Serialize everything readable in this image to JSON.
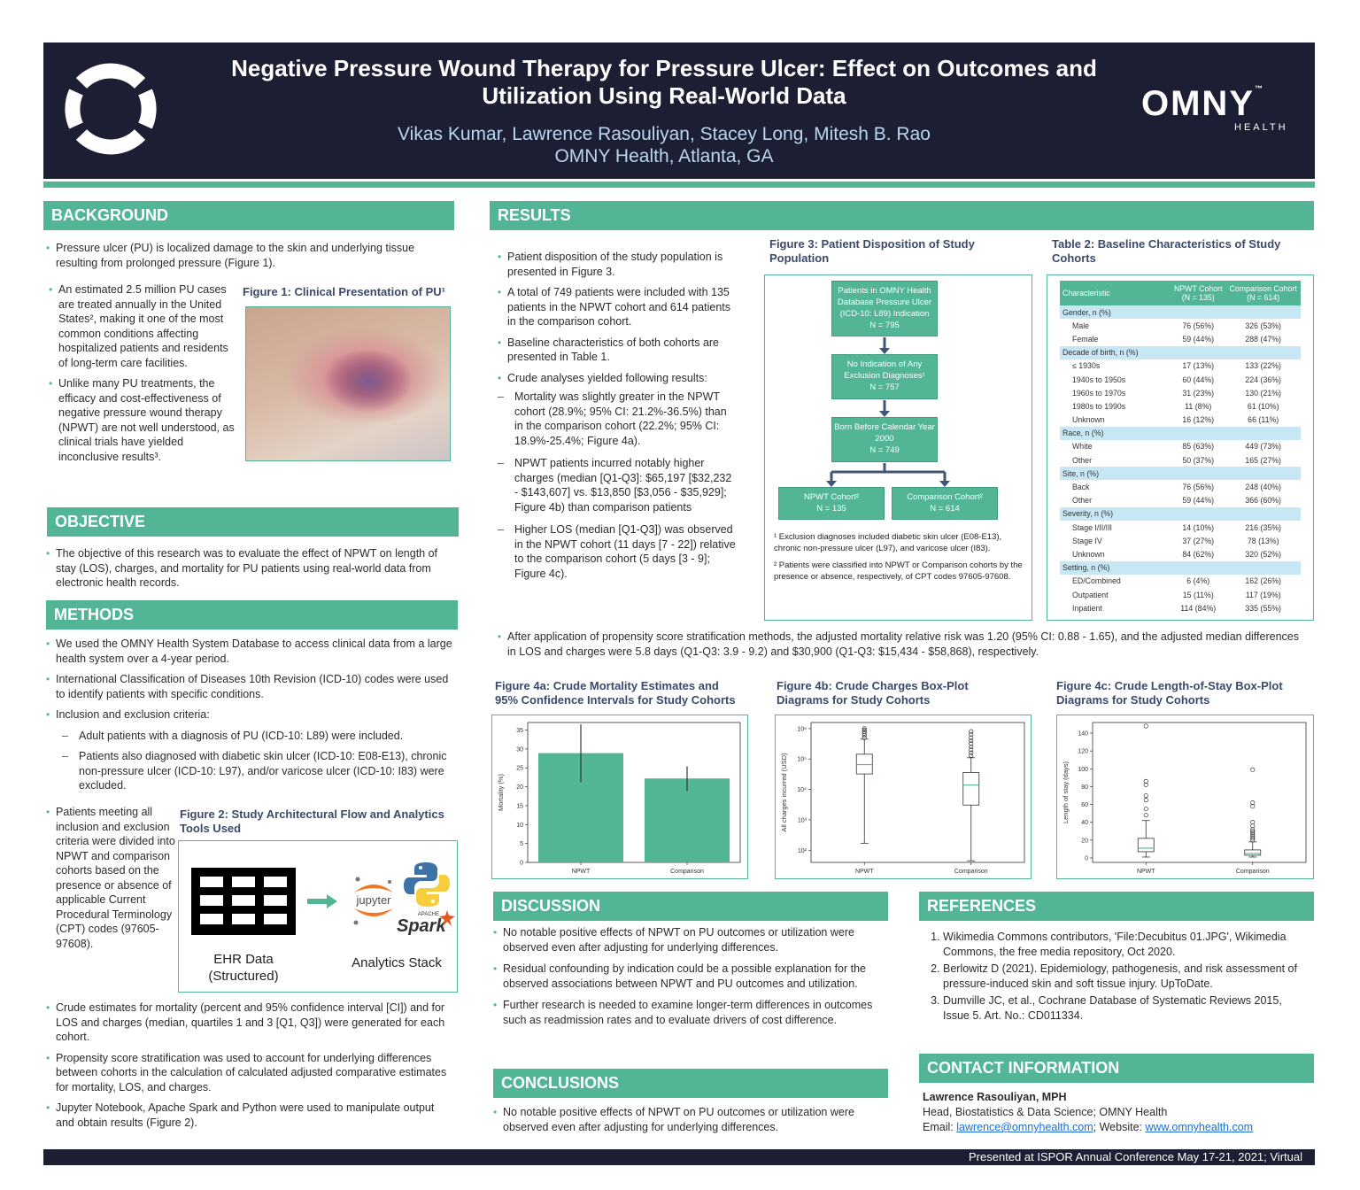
{
  "header": {
    "title": "Negative Pressure Wound Therapy for Pressure Ulcer: Effect on Outcomes and Utilization Using Real-World Data",
    "authors": "Vikas Kumar, Lawrence Rasouliyan, Stacey Long, Mitesh B. Rao",
    "affiliation": "OMNY Health, Atlanta, GA",
    "logo_text": "OMNY",
    "logo_sub": "HEALTH",
    "tm": "™"
  },
  "background": {
    "heading": "BACKGROUND",
    "items": [
      "Pressure ulcer (PU) is localized damage to the skin and underlying tissue resulting from prolonged pressure (Figure 1).",
      "An estimated 2.5 million PU cases are treated annually in the United States², making it one of the most common conditions affecting hospitalized patients and residents of long-term care facilities.",
      "Unlike many PU treatments, the efficacy and cost-effectiveness of negative pressure wound therapy (NPWT) are not well understood, as clinical trials have yielded inconclusive results³."
    ],
    "fig1_caption": "Figure 1: Clinical Presentation of PU¹"
  },
  "objective": {
    "heading": "OBJECTIVE",
    "items": [
      "The objective of this research was to evaluate the effect of NPWT on length of stay (LOS), charges, and mortality for PU patients using real-world data from electronic health records."
    ]
  },
  "methods": {
    "heading": "METHODS",
    "items": [
      "We used the OMNY Health System Database to access clinical data from a large health system over a 4-year period.",
      "International Classification of Diseases 10th Revision (ICD-10) codes were used to identify patients with specific conditions.",
      "Inclusion and exclusion criteria:"
    ],
    "sub": [
      "Adult patients with a diagnosis of PU (ICD-10: L89) were included.",
      "Patients also diagnosed with diabetic skin ulcer (ICD-10: E08-E13), chronic non-pressure ulcer (ICD-10: L97), and/or varicose ulcer (ICD-10: I83) were excluded."
    ],
    "cohort_item": "Patients meeting all inclusion and exclusion criteria were divided into NPWT and comparison cohorts based on the presence or absence of applicable Current Procedural Terminology (CPT) codes (97605-97608).",
    "fig2_caption": "Figure 2: Study Architectural Flow and Analytics Tools Used",
    "fig2_left": "EHR Data (Structured)",
    "fig2_right": "Analytics Stack",
    "jupyter": "jupyter",
    "spark_apache": "APACHE",
    "spark": "Spark",
    "items2": [
      "Crude estimates for mortality (percent and 95% confidence interval [CI]) and for LOS and charges (median, quartiles 1 and 3 [Q1, Q3]) were generated for each cohort.",
      "Propensity score stratification was used to account for underlying differences between cohorts in the calculation of calculated adjusted comparative estimates for mortality, LOS, and charges.",
      "Jupyter Notebook, Apache Spark and Python were used to manipulate output and obtain results (Figure 2)."
    ]
  },
  "results": {
    "heading": "RESULTS",
    "items": [
      "Patient disposition of the study population is presented in Figure 3.",
      "A total of 749 patients were included with 135 patients in the NPWT cohort and 614 patients in the comparison cohort.",
      "Baseline characteristics of both cohorts are presented in Table 1.",
      "Crude analyses yielded following results:"
    ],
    "sub": [
      "Mortality was slightly greater in the NPWT cohort (28.9%; 95% CI: 21.2%-36.5%) than in the comparison cohort (22.2%; 95% CI: 18.9%-25.4%; Figure 4a).",
      "NPWT patients incurred notably higher charges (median [Q1-Q3]: $65,197 [$32,232 - $143,607] vs. $13,850 [$3,056 - $35,929]; Figure 4b) than comparison patients",
      "Higher LOS (median [Q1-Q3]) was observed in the NPWT cohort (11 days [7 - 22]) relative to the comparison cohort (5 days [3 - 9]; Figure 4c)."
    ],
    "adjusted": "After application of propensity score stratification methods, the adjusted mortality relative risk was 1.20 (95% CI: 0.88 - 1.65), and the adjusted median differences in LOS and charges were 5.8 days (Q1-Q3: 3.9 - 9.2) and $30,900 (Q1-Q3: $15,434 - $58,868), respectively."
  },
  "fig3": {
    "caption": "Figure 3: Patient Disposition of Study Population",
    "box1": "Patients in OMNY Health Database Pressure Ulcer (ICD-10: L89) Indication",
    "n1": "N = 795",
    "box2": "No Indication of Any Exclusion Diagnoses¹",
    "n2": "N = 757",
    "box3": "Born Before Calendar Year 2000",
    "n3": "N = 749",
    "box4": "NPWT Cohort²",
    "n4": "N = 135",
    "box5": "Comparison Cohort²",
    "n5": "N = 614",
    "note1": "¹ Exclusion diagnoses included diabetic skin ulcer (E08-E13), chronic non-pressure ulcer (L97), and varicose ulcer (I83).",
    "note2": "² Patients were classified into NPWT or Comparison cohorts by the presence or absence, respectively, of CPT codes 97605-97608."
  },
  "table2": {
    "caption": "Table 2: Baseline Characteristics of Study Cohorts",
    "h1": "Characteristic",
    "h2a": "NPWT Cohort",
    "h2b": "(N = 135)",
    "h3a": "Comparison Cohort",
    "h3b": "(N = 614)",
    "rows": [
      {
        "g": "Gender, n (%)"
      },
      {
        "l": "Male",
        "a": "76 (56%)",
        "b": "326 (53%)"
      },
      {
        "l": "Female",
        "a": "59 (44%)",
        "b": "288 (47%)"
      },
      {
        "g": "Decade of birth, n (%)"
      },
      {
        "l": "≤ 1930s",
        "a": "17 (13%)",
        "b": "133 (22%)"
      },
      {
        "l": "1940s to 1950s",
        "a": "60 (44%)",
        "b": "224 (36%)"
      },
      {
        "l": "1960s to 1970s",
        "a": "31 (23%)",
        "b": "130 (21%)"
      },
      {
        "l": "1980s to 1990s",
        "a": "11 (8%)",
        "b": "61 (10%)"
      },
      {
        "l": "Unknown",
        "a": "16 (12%)",
        "b": "66 (11%)"
      },
      {
        "g": "Race, n (%)"
      },
      {
        "l": "White",
        "a": "85 (63%)",
        "b": "449 (73%)"
      },
      {
        "l": "Other",
        "a": "50 (37%)",
        "b": "165 (27%)"
      },
      {
        "g": "Site, n (%)"
      },
      {
        "l": "Back",
        "a": "76 (56%)",
        "b": "248 (40%)"
      },
      {
        "l": "Other",
        "a": "59 (44%)",
        "b": "366 (60%)"
      },
      {
        "g": "Severity, n (%)"
      },
      {
        "l": "Stage I/II/III",
        "a": "14 (10%)",
        "b": "216 (35%)"
      },
      {
        "l": "Stage IV",
        "a": "37 (27%)",
        "b": "78 (13%)"
      },
      {
        "l": "Unknown",
        "a": "84 (62%)",
        "b": "320 (52%)"
      },
      {
        "g": "Setting, n (%)"
      },
      {
        "l": "ED/Combined",
        "a": "6 (4%)",
        "b": "162 (26%)"
      },
      {
        "l": "Outpatient",
        "a": "15 (11%)",
        "b": "117 (19%)"
      },
      {
        "l": "Inpatient",
        "a": "114 (84%)",
        "b": "335 (55%)"
      }
    ]
  },
  "fig4a_caption": "Figure 4a: Crude Mortality Estimates and 95% Confidence Intervals for Study Cohorts",
  "fig4b_caption": "Figure 4b: Crude Charges Box-Plot Diagrams for Study Cohorts",
  "fig4c_caption": "Figure 4c: Crude Length-of-Stay Box-Plot Diagrams for Study Cohorts",
  "chart_data": [
    {
      "type": "bar",
      "title": "",
      "xlabel": "",
      "ylabel": "Mortality (%)",
      "categories": [
        "NPWT",
        "Comparison"
      ],
      "values": [
        28.9,
        22.2
      ],
      "ci_low": [
        21.2,
        18.9
      ],
      "ci_high": [
        36.5,
        25.4
      ],
      "ylim": [
        0,
        37
      ],
      "yticks": [
        0,
        5,
        10,
        15,
        20,
        25,
        30,
        35
      ],
      "color": "#52b596"
    },
    {
      "type": "box",
      "title": "",
      "ylabel": "All charges incurred (USD)",
      "yscale": "log",
      "categories": [
        "NPWT",
        "Comparison"
      ],
      "ylim_log": [
        1.6,
        6.2
      ],
      "ytick_labels": [
        "10²",
        "10³",
        "10⁴",
        "10⁵",
        "10⁶"
      ],
      "ytick_values": [
        2,
        3,
        4,
        5,
        6
      ],
      "median": [
        65197,
        13850
      ],
      "q1": [
        32232,
        3056
      ],
      "q3": [
        143607,
        35929
      ],
      "whisker_low": [
        170,
        45
      ],
      "whisker_high": [
        450000,
        110000
      ],
      "outliers_high": [
        [
          500000,
          600000,
          700000,
          800000,
          900000,
          1000000
        ],
        [
          130000,
          160000,
          200000,
          250000,
          320000,
          400000,
          500000,
          650000,
          800000
        ]
      ]
    },
    {
      "type": "box",
      "title": "",
      "ylabel": "Length of stay (days)",
      "categories": [
        "NPWT",
        "Comparison"
      ],
      "ylim": [
        -5,
        152
      ],
      "yticks": [
        0,
        20,
        40,
        60,
        80,
        100,
        120,
        140
      ],
      "median": [
        11,
        5
      ],
      "q1": [
        7,
        3
      ],
      "q3": [
        22,
        9
      ],
      "whisker_low": [
        1,
        1
      ],
      "whisker_high": [
        42,
        18
      ],
      "outliers_high": [
        [
          48,
          55,
          65,
          70,
          82,
          86,
          148
        ],
        [
          20,
          22,
          24,
          26,
          28,
          30,
          32,
          36,
          40,
          58,
          62,
          99
        ]
      ]
    }
  ],
  "discussion": {
    "heading": "DISCUSSION",
    "items": [
      "No notable positive effects of NPWT on PU outcomes or utilization were observed even after adjusting for underlying differences.",
      "Residual confounding by indication could be a possible explanation for the observed associations between NPWT and PU outcomes and utilization.",
      "Further research is needed to examine longer-term differences in outcomes such as readmission rates and to evaluate drivers of cost difference."
    ]
  },
  "conclusions": {
    "heading": "CONCLUSIONS",
    "items": [
      "No notable positive effects of NPWT on PU outcomes or utilization were observed even after adjusting for underlying differences."
    ]
  },
  "references": {
    "heading": "REFERENCES",
    "items": [
      "Wikimedia Commons contributors, 'File:Decubitus 01.JPG', Wikimedia Commons, the free media repository, Oct 2020.",
      "Berlowitz D (2021).  Epidemiology, pathogenesis, and risk assessment of pressure-induced skin and soft tissue injury. UpToDate.",
      "Dumville JC, et al., Cochrane Database of Systematic Reviews 2015, Issue 5. Art. No.: CD011334."
    ]
  },
  "contact": {
    "heading": "CONTACT INFORMATION",
    "name": "Lawrence Rasouliyan, MPH",
    "role": "Head, Biostatistics & Data Science;  OMNY Health",
    "email_label": "Email:",
    "email": "lawrence@omnyhealth.com",
    "website_label": ";  Website:",
    "website": "www.omnyhealth.com"
  },
  "footer": "Presented at ISPOR Annual Conference May 17-21, 2021; Virtual"
}
